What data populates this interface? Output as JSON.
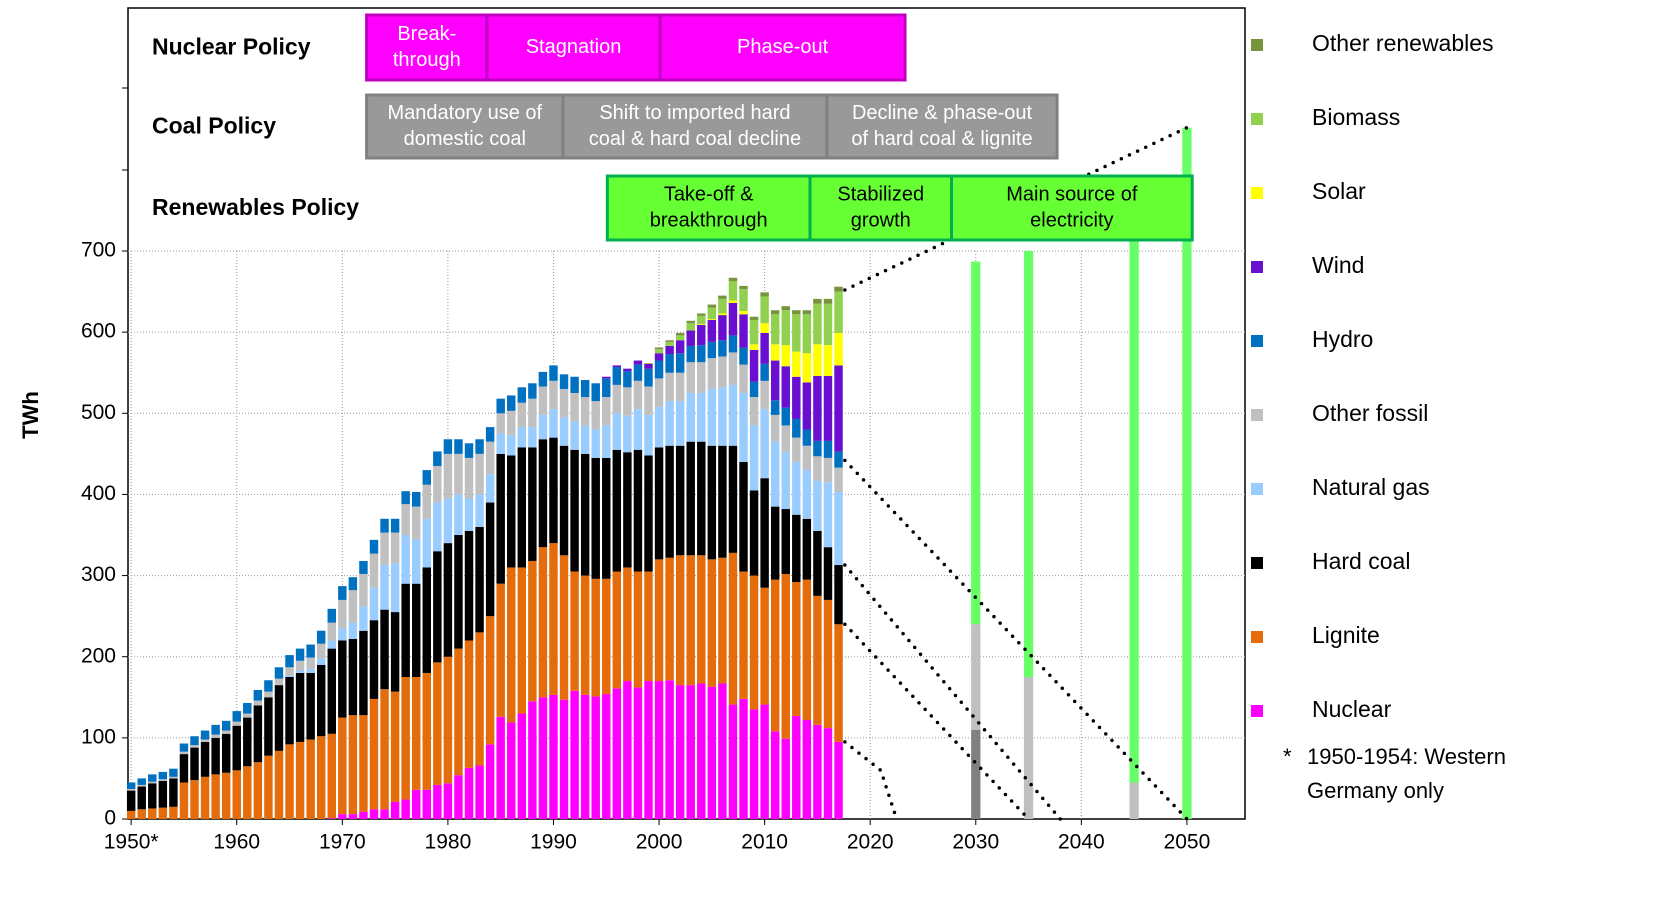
{
  "chart_data": {
    "type": "stacked_bar",
    "y_label": "TWh",
    "xlim": [
      1949.7,
      2055.5
    ],
    "xticks": [
      {
        "value": 1950,
        "label": "1950*"
      },
      1960,
      1970,
      1980,
      1990,
      2000,
      2010,
      2020,
      2030,
      2040,
      2050
    ],
    "ylim": [
      0,
      700
    ],
    "yticks": [
      0,
      100,
      200,
      300,
      400,
      500,
      600,
      700
    ],
    "grid": true,
    "legend": "right",
    "x": [
      1950,
      1951,
      1952,
      1953,
      1954,
      1955,
      1956,
      1957,
      1958,
      1959,
      1960,
      1961,
      1962,
      1963,
      1964,
      1965,
      1966,
      1967,
      1968,
      1969,
      1970,
      1971,
      1972,
      1973,
      1974,
      1975,
      1976,
      1977,
      1978,
      1979,
      1980,
      1981,
      1982,
      1983,
      1984,
      1985,
      1986,
      1987,
      1988,
      1989,
      1990,
      1991,
      1992,
      1993,
      1994,
      1995,
      1996,
      1997,
      1998,
      1999,
      2000,
      2001,
      2002,
      2003,
      2004,
      2005,
      2006,
      2007,
      2008,
      2009,
      2010,
      2011,
      2012,
      2013,
      2014,
      2015,
      2016,
      2017
    ],
    "series": [
      {
        "name": "Nuclear",
        "color": "#ff00ff",
        "values": [
          0,
          0,
          0,
          0,
          0,
          0,
          0,
          0,
          0,
          0,
          0,
          0,
          0,
          0,
          0,
          0,
          0,
          0,
          0,
          1,
          6,
          6,
          9,
          12,
          12,
          21,
          24,
          36,
          36,
          42,
          44,
          54,
          63,
          66,
          92,
          126,
          119,
          130,
          145,
          150,
          153,
          147,
          158,
          153,
          151,
          154,
          161,
          170,
          162,
          170,
          170,
          171,
          165,
          165,
          167,
          163,
          167,
          141,
          148,
          135,
          141,
          108,
          99,
          127,
          122,
          116,
          112,
          95
        ]
      },
      {
        "name": "Lignite",
        "color": "#e46c0a",
        "values": [
          10,
          12,
          13,
          14,
          15,
          45,
          48,
          52,
          55,
          57,
          60,
          65,
          70,
          78,
          84,
          92,
          95,
          98,
          102,
          104,
          119,
          122,
          119,
          136,
          148,
          136,
          151,
          139,
          144,
          151,
          156,
          156,
          157,
          164,
          158,
          164,
          191,
          180,
          173,
          185,
          187,
          178,
          147,
          147,
          145,
          142,
          144,
          140,
          143,
          135,
          150,
          151,
          160,
          160,
          158,
          157,
          155,
          187,
          157,
          165,
          144,
          187,
          203,
          165,
          173,
          159,
          158,
          145
        ]
      },
      {
        "name": "Hard coal",
        "color": "#000000",
        "values": [
          25,
          28,
          31,
          33,
          35,
          35,
          40,
          43,
          45,
          48,
          55,
          60,
          70,
          72,
          81,
          83,
          85,
          82,
          88,
          105,
          95,
          94,
          104,
          97,
          98,
          98,
          115,
          115,
          130,
          137,
          140,
          140,
          135,
          130,
          140,
          160,
          138,
          148,
          140,
          133,
          130,
          135,
          150,
          150,
          149,
          149,
          150,
          142,
          150,
          143,
          138,
          138,
          135,
          140,
          140,
          140,
          138,
          132,
          135,
          105,
          135,
          90,
          80,
          83,
          75,
          80,
          65,
          73
        ]
      },
      {
        "name": "Natural gas",
        "color": "#99ccff",
        "values": [
          0,
          0,
          0,
          0,
          0,
          0,
          0,
          0,
          0,
          0,
          0,
          0,
          0,
          0,
          0,
          2,
          3,
          5,
          8,
          10,
          15,
          20,
          30,
          40,
          55,
          60,
          60,
          55,
          60,
          60,
          55,
          50,
          40,
          40,
          35,
          25,
          25,
          25,
          25,
          30,
          35,
          35,
          35,
          35,
          35,
          40,
          45,
          45,
          50,
          50,
          50,
          55,
          55,
          60,
          60,
          70,
          72,
          75,
          85,
          80,
          85,
          80,
          70,
          65,
          60,
          62,
          80,
          90
        ]
      },
      {
        "name": "Other fossil",
        "color": "#c0c0c0",
        "values": [
          2,
          2,
          2,
          2,
          2,
          3,
          3,
          3,
          4,
          4,
          5,
          5,
          6,
          7,
          8,
          10,
          12,
          14,
          18,
          22,
          35,
          40,
          40,
          42,
          40,
          38,
          38,
          40,
          42,
          45,
          55,
          50,
          50,
          50,
          40,
          25,
          30,
          30,
          35,
          35,
          35,
          35,
          35,
          35,
          35,
          35,
          35,
          35,
          35,
          35,
          35,
          35,
          35,
          38,
          38,
          38,
          38,
          40,
          35,
          35,
          35,
          33,
          33,
          30,
          30,
          30,
          30,
          30
        ]
      },
      {
        "name": "Hydro",
        "color": "#0070c0",
        "values": [
          8,
          8,
          9,
          9,
          10,
          10,
          11,
          11,
          12,
          12,
          13,
          13,
          13,
          14,
          14,
          15,
          15,
          16,
          16,
          17,
          17,
          16,
          16,
          17,
          17,
          17,
          16,
          18,
          18,
          18,
          18,
          18,
          18,
          18,
          18,
          18,
          19,
          19,
          19,
          18,
          19,
          18,
          20,
          21,
          22,
          23,
          22,
          20,
          20,
          22,
          22,
          23,
          24,
          20,
          21,
          20,
          20,
          21,
          21,
          19,
          21,
          18,
          22,
          23,
          20,
          19,
          21,
          20
        ]
      },
      {
        "name": "Wind",
        "color": "#6a0fcf",
        "values": [
          0,
          0,
          0,
          0,
          0,
          0,
          0,
          0,
          0,
          0,
          0,
          0,
          0,
          0,
          0,
          0,
          0,
          0,
          0,
          0,
          0,
          0,
          0,
          0,
          0,
          0,
          0,
          0,
          0,
          0,
          0,
          0,
          0,
          0,
          0,
          0,
          0,
          0,
          0,
          0,
          0,
          0,
          0,
          0,
          0,
          2,
          2,
          3,
          5,
          6,
          9,
          10,
          16,
          19,
          25,
          27,
          31,
          40,
          41,
          39,
          38,
          49,
          51,
          52,
          58,
          80,
          80,
          106
        ]
      },
      {
        "name": "Solar",
        "color": "#ffff00",
        "values": [
          0,
          0,
          0,
          0,
          0,
          0,
          0,
          0,
          0,
          0,
          0,
          0,
          0,
          0,
          0,
          0,
          0,
          0,
          0,
          0,
          0,
          0,
          0,
          0,
          0,
          0,
          0,
          0,
          0,
          0,
          0,
          0,
          0,
          0,
          0,
          0,
          0,
          0,
          0,
          0,
          0,
          0,
          0,
          0,
          0,
          0,
          0,
          0,
          0,
          0,
          0,
          0,
          0,
          0,
          1,
          1,
          2,
          3,
          4,
          7,
          12,
          20,
          26,
          31,
          36,
          39,
          38,
          40
        ]
      },
      {
        "name": "Biomass",
        "color": "#92d050",
        "values": [
          0,
          0,
          0,
          0,
          0,
          0,
          0,
          0,
          0,
          0,
          0,
          0,
          0,
          0,
          0,
          0,
          0,
          0,
          0,
          0,
          0,
          0,
          0,
          0,
          0,
          0,
          0,
          0,
          0,
          0,
          0,
          0,
          0,
          0,
          0,
          0,
          0,
          0,
          0,
          0,
          0,
          0,
          0,
          0,
          0,
          0,
          0,
          0,
          0,
          1,
          5,
          5,
          6,
          9,
          10,
          14,
          18,
          24,
          27,
          30,
          33,
          37,
          43,
          46,
          48,
          50,
          51,
          51
        ]
      },
      {
        "name": "Other renewables",
        "color": "#77933c",
        "values": [
          0,
          0,
          0,
          0,
          0,
          0,
          0,
          0,
          0,
          0,
          0,
          0,
          0,
          0,
          0,
          0,
          0,
          0,
          0,
          0,
          0,
          0,
          0,
          0,
          0,
          0,
          0,
          0,
          0,
          0,
          0,
          0,
          0,
          0,
          0,
          0,
          0,
          0,
          0,
          0,
          0,
          0,
          0,
          0,
          0,
          0,
          0,
          0,
          0,
          0,
          2,
          2,
          3,
          3,
          3,
          4,
          4,
          4,
          4,
          4,
          5,
          5,
          5,
          5,
          5,
          6,
          6,
          6
        ]
      }
    ],
    "targets": {
      "x": [
        2030,
        2035,
        2045,
        2050
      ],
      "series": [
        {
          "color": "#808080",
          "values": [
            110,
            0,
            0,
            0
          ]
        },
        {
          "color": "#c0c0c0",
          "values": [
            130,
            175,
            45,
            0
          ]
        },
        {
          "color": "#66ff66",
          "values": [
            447,
            525,
            669,
            852
          ]
        }
      ]
    },
    "projection_lines": [
      {
        "x": [
          2017.6,
          2050
        ],
        "values": [
          652,
          852
        ]
      },
      {
        "x": [
          2017.6,
          2050
        ],
        "values": [
          442,
          0
        ]
      },
      {
        "x": [
          2017.6,
          2038
        ],
        "values": [
          313,
          0
        ]
      },
      {
        "x": [
          2017.6,
          2035
        ],
        "values": [
          240,
          0
        ]
      },
      {
        "x": [
          2017.6,
          2021,
          2022.5
        ],
        "values": [
          95,
          60,
          0
        ]
      }
    ],
    "policies": [
      {
        "label": "Nuclear Policy",
        "fill": "#ff00ff",
        "stroke": "#c000c0",
        "text_color": "#ffffff",
        "phases": [
          {
            "lines": [
              "Break-",
              "through"
            ],
            "start": 1972.3,
            "end": 1983.7
          },
          {
            "lines": [
              "Stagnation"
            ],
            "start": 1983.7,
            "end": 2000.1
          },
          {
            "lines": [
              "Phase-out"
            ],
            "start": 2000.1,
            "end": 2023.3
          }
        ]
      },
      {
        "label": "Coal Policy",
        "fill": "#999999",
        "stroke": "#808080",
        "text_color": "#ffffff",
        "phases": [
          {
            "lines": [
              "Mandatory use of",
              "domestic coal"
            ],
            "start": 1972.3,
            "end": 1990.9
          },
          {
            "lines": [
              "Shift to imported hard",
              "coal & hard coal decline"
            ],
            "start": 1990.9,
            "end": 2015.9
          },
          {
            "lines": [
              "Decline & phase-out",
              "of hard coal & lignite"
            ],
            "start": 2015.9,
            "end": 2037.7
          }
        ]
      },
      {
        "label": "Renewables Policy",
        "fill": "#66ff33",
        "stroke": "#00b050",
        "text_color": "#000000",
        "phases": [
          {
            "lines": [
              "Take-off &",
              "breakthrough"
            ],
            "start": 1995.1,
            "end": 2014.3
          },
          {
            "lines": [
              "Stabilized",
              "growth"
            ],
            "start": 2014.3,
            "end": 2027.7
          },
          {
            "lines": [
              "Main source of",
              "electricity"
            ],
            "start": 2027.7,
            "end": 2050.5
          }
        ]
      }
    ],
    "note": [
      "*",
      "1950-1954: Western",
      "Germany only"
    ]
  }
}
